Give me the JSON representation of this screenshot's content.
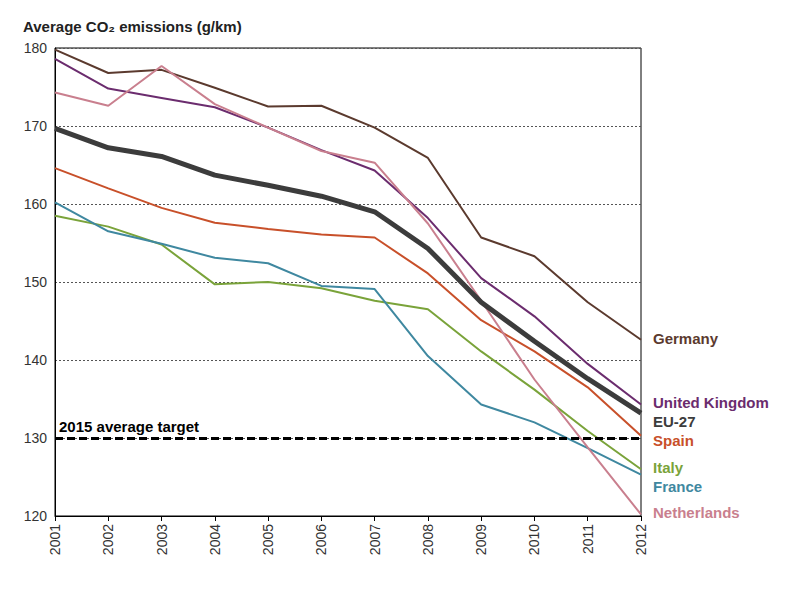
{
  "chart_data": {
    "type": "line",
    "title": "Average CO₂ emissions (g/km)",
    "categories": [
      "2001",
      "2002",
      "2003",
      "2004",
      "2005",
      "2006",
      "2007",
      "2008",
      "2009",
      "2010",
      "2011",
      "2012"
    ],
    "series": [
      {
        "name": "Germany",
        "color": "#5b3a2e",
        "line_style": "solid",
        "values": [
          179.8,
          176.8,
          177.2,
          174.9,
          172.5,
          172.6,
          169.8,
          165.9,
          155.7,
          153.3,
          147.4,
          142.6
        ]
      },
      {
        "name": "United Kingdom",
        "color": "#6b2c6e",
        "line_style": "solid",
        "values": [
          178.6,
          174.8,
          173.6,
          172.4,
          169.8,
          166.9,
          164.3,
          158.2,
          150.5,
          145.6,
          139.5,
          134.3
        ]
      },
      {
        "name": "EU-27",
        "color": "#3c3c3c",
        "line_style": "thick",
        "values": [
          169.7,
          167.2,
          166.1,
          163.7,
          162.4,
          161.0,
          159.0,
          154.3,
          147.4,
          142.4,
          137.6,
          133.2
        ]
      },
      {
        "name": "Spain",
        "color": "#c8502a",
        "line_style": "solid",
        "values": [
          164.6,
          162.0,
          159.5,
          157.6,
          156.8,
          156.1,
          155.7,
          151.1,
          145.1,
          141.1,
          136.5,
          130.3
        ]
      },
      {
        "name": "Italy",
        "color": "#7aa33a",
        "line_style": "solid",
        "values": [
          158.5,
          157.1,
          154.8,
          149.7,
          150.0,
          149.2,
          147.6,
          146.5,
          141.1,
          136.2,
          130.9,
          126.0
        ]
      },
      {
        "name": "France",
        "color": "#3f88a0",
        "line_style": "solid",
        "values": [
          160.2,
          156.5,
          154.9,
          153.1,
          152.4,
          149.5,
          149.1,
          140.5,
          134.3,
          132.0,
          128.7,
          125.3
        ]
      },
      {
        "name": "Netherlands",
        "color": "#c97f8e",
        "line_style": "solid",
        "values": [
          174.3,
          172.6,
          177.7,
          172.8,
          169.8,
          166.8,
          165.3,
          157.5,
          147.6,
          137.5,
          128.8,
          120.2
        ]
      }
    ],
    "annotations": [
      {
        "text": "2015 average target",
        "y": 130,
        "line_style": "dashed",
        "color": "#000000"
      }
    ],
    "ylim": [
      120,
      180
    ],
    "yticks": [
      120,
      130,
      140,
      150,
      160,
      170,
      180
    ],
    "grid": true
  }
}
